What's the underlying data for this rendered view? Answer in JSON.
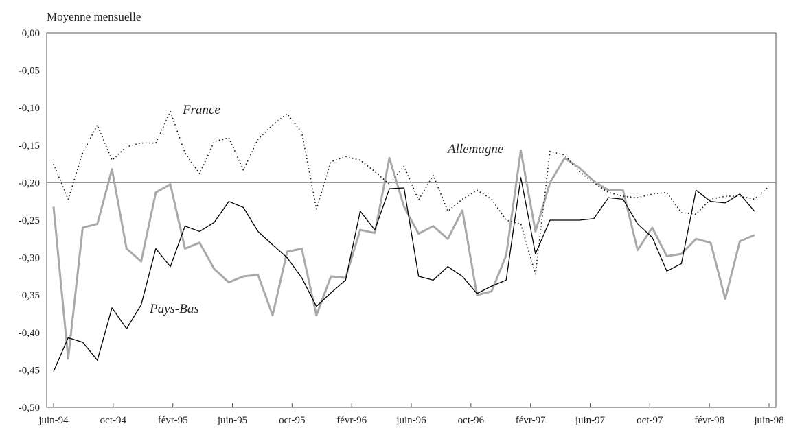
{
  "chart_data": {
    "type": "line",
    "title": "Moyenne mensuelle",
    "xlabel": "",
    "ylabel": "",
    "ylim": [
      -0.5,
      0.0
    ],
    "y_ticks": [
      "0,00",
      "-0,05",
      "-0,10",
      "-0,15",
      "-0,20",
      "-0,25",
      "-0,30",
      "-0,35",
      "-0,40",
      "-0,45",
      "-0,50"
    ],
    "y_tick_values": [
      0.0,
      -0.05,
      -0.1,
      -0.15,
      -0.2,
      -0.25,
      -0.3,
      -0.35,
      -0.4,
      -0.45,
      -0.5
    ],
    "x_ticks": [
      "juin-94",
      "oct-94",
      "févr-95",
      "juin-95",
      "oct-95",
      "févr-96",
      "juin-96",
      "oct-96",
      "févr-97",
      "juin-97",
      "oct-97",
      "févr-98",
      "juin-98"
    ],
    "reference_line": -0.2,
    "grid": false,
    "legend": "inline labels",
    "series": [
      {
        "name": "France",
        "style": "dotted",
        "color": "#111111",
        "values": [
          -0.175,
          -0.222,
          -0.16,
          -0.123,
          -0.17,
          -0.152,
          -0.147,
          -0.147,
          -0.105,
          -0.16,
          -0.188,
          -0.145,
          -0.14,
          -0.183,
          -0.142,
          -0.123,
          -0.108,
          -0.133,
          -0.235,
          -0.172,
          -0.165,
          -0.17,
          -0.185,
          -0.202,
          -0.178,
          -0.223,
          -0.19,
          -0.238,
          -0.222,
          -0.21,
          -0.222,
          -0.25,
          -0.255,
          -0.322,
          -0.158,
          -0.163,
          -0.185,
          -0.2,
          -0.213,
          -0.218,
          -0.22,
          -0.215,
          -0.213,
          -0.24,
          -0.242,
          -0.222,
          -0.218,
          -0.218,
          -0.222,
          -0.205
        ]
      },
      {
        "name": "Allemagne",
        "style": "solid-thick",
        "color": "#a9a9a9",
        "values": [
          -0.232,
          -0.435,
          -0.26,
          -0.255,
          -0.182,
          -0.288,
          -0.305,
          -0.213,
          -0.202,
          -0.288,
          -0.28,
          -0.315,
          -0.333,
          -0.325,
          -0.323,
          -0.377,
          -0.292,
          -0.288,
          -0.377,
          -0.325,
          -0.327,
          -0.263,
          -0.267,
          -0.167,
          -0.232,
          -0.268,
          -0.258,
          -0.275,
          -0.237,
          -0.35,
          -0.345,
          -0.297,
          -0.157,
          -0.265,
          -0.2,
          -0.167,
          -0.18,
          -0.198,
          -0.21,
          -0.21,
          -0.29,
          -0.26,
          -0.298,
          -0.295,
          -0.275,
          -0.28,
          -0.355,
          -0.278,
          -0.27
        ]
      },
      {
        "name": "Pays-Bas",
        "style": "solid-thin",
        "color": "#000000",
        "values": [
          -0.452,
          -0.407,
          -0.413,
          -0.437,
          -0.367,
          -0.395,
          -0.363,
          -0.288,
          -0.312,
          -0.258,
          -0.265,
          -0.253,
          -0.225,
          -0.233,
          -0.265,
          -0.283,
          -0.3,
          -0.327,
          -0.365,
          -0.347,
          -0.33,
          -0.238,
          -0.263,
          -0.208,
          -0.207,
          -0.325,
          -0.33,
          -0.312,
          -0.325,
          -0.348,
          -0.338,
          -0.33,
          -0.193,
          -0.295,
          -0.25,
          -0.25,
          -0.25,
          -0.248,
          -0.22,
          -0.222,
          -0.255,
          -0.273,
          -0.318,
          -0.308,
          -0.21,
          -0.225,
          -0.227,
          -0.215,
          -0.238
        ]
      }
    ]
  }
}
